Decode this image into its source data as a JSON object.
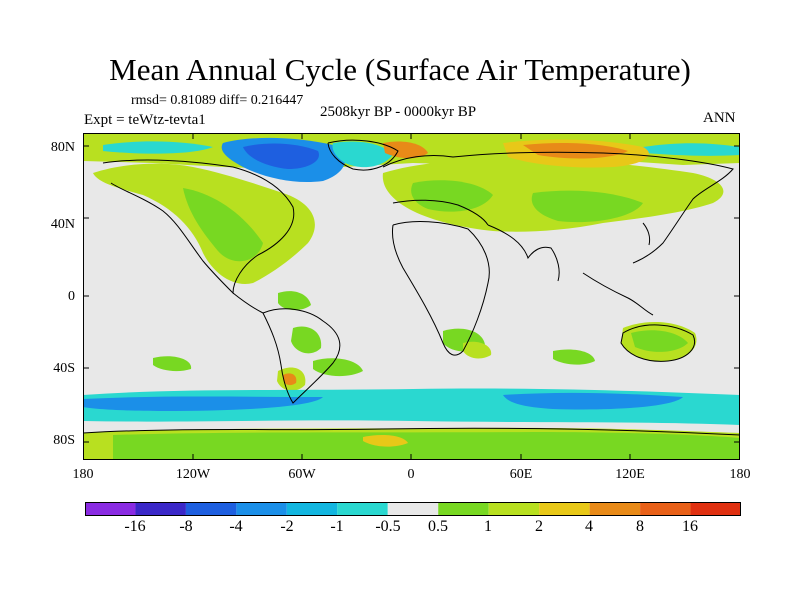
{
  "title": "Mean Annual Cycle (Surface Air Temperature)",
  "stats": "rmsd= 0.81089 diff= 0.216447",
  "experiment": "Expt = teWtz-tevta1",
  "period": "2508kyr BP - 0000kyr BP",
  "season": "ANN",
  "lat_labels": [
    "80N",
    "40N",
    "0",
    "40S",
    "80S"
  ],
  "lon_labels": [
    "180",
    "120W",
    "60W",
    "0",
    "60E",
    "120E",
    "180"
  ],
  "colorbar": {
    "labels": [
      "-16",
      "-8",
      "-4",
      "-2",
      "-1",
      "-0.5",
      "0.5",
      "1",
      "2",
      "4",
      "8",
      "16"
    ],
    "colors": [
      "#8a2be2",
      "#3b28c8",
      "#1e5fe0",
      "#1b8fe8",
      "#12b6e0",
      "#2ad8d0",
      "#e8e8e8",
      "#78d822",
      "#b8e020",
      "#e8c818",
      "#e88a18",
      "#e86018",
      "#e03010"
    ]
  },
  "map_colors": {
    "ocean_neutral": "#e8e8e8",
    "warm_light": "#78d822",
    "warm_mid": "#b8e020",
    "warm_high": "#e8c818",
    "warm_orange": "#e88a18",
    "cool_cyan": "#2ad8d0",
    "cool_blue": "#1b8fe8",
    "cool_dark": "#1e5fe0",
    "coast": "#000000"
  }
}
